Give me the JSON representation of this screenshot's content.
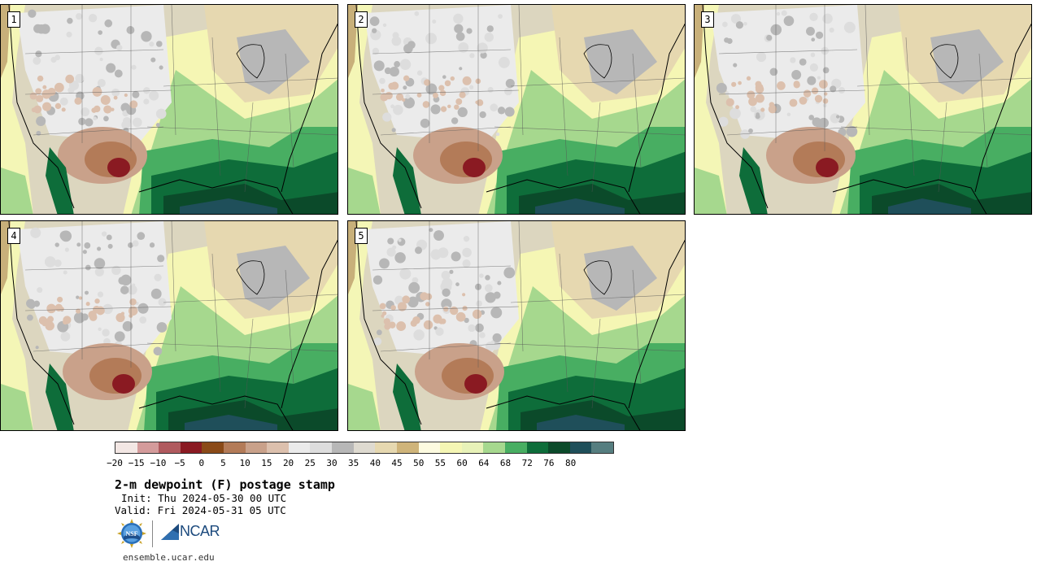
{
  "panels": [
    {
      "label": "1"
    },
    {
      "label": "2"
    },
    {
      "label": "3"
    },
    {
      "label": "4"
    },
    {
      "label": "5"
    }
  ],
  "colorbar": {
    "tick_labels": [
      "−20",
      "−15",
      "−10",
      "−5",
      "0",
      "5",
      "10",
      "15",
      "20",
      "25",
      "30",
      "35",
      "40",
      "45",
      "50",
      "55",
      "60",
      "64",
      "68",
      "72",
      "76",
      "80"
    ],
    "colors": [
      "#f3e7e4",
      "#d49b9b",
      "#b05a5e",
      "#8a1a22",
      "#8a4a18",
      "#b37b58",
      "#c9a18a",
      "#dcc0ad",
      "#ebebeb",
      "#dddddd",
      "#b7b7b7",
      "#dedad0",
      "#e6d8b0",
      "#cfb47a",
      "#fdfbe0",
      "#f5f6b4",
      "#e8f2b8",
      "#a6d88e",
      "#48ae62",
      "#0e6d3a",
      "#0b4a2a",
      "#1f4f5a",
      "#567e80"
    ]
  },
  "title": "2-m dewpoint (F) postage stamp",
  "init": "Init: Thu 2024-05-30 00 UTC",
  "valid": "Valid: Fri 2024-05-31 05 UTC",
  "logos": {
    "nsf": "NSF",
    "ncar": "NCAR"
  },
  "website": "ensemble.ucar.edu"
}
